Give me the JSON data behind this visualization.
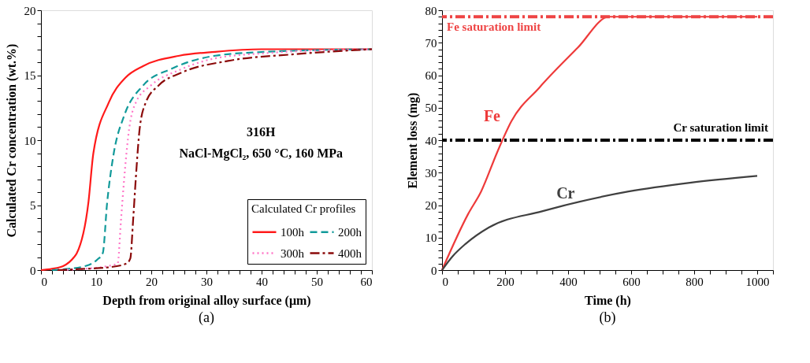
{
  "chart_data": [
    {
      "type": "line",
      "title": "(a)",
      "xlabel": "Depth from original alloy surface (μm)",
      "ylabel": "Calculated Cr concentration (wt.%)",
      "legend_title": "Calculated Cr profiles",
      "legend": "bottom right",
      "grid": false,
      "marker": "none",
      "xlim": [
        0,
        60
      ],
      "ylim": [
        0,
        20
      ],
      "xticks": [
        0,
        {
          "value": 2,
          "label": null
        },
        {
          "value": 4,
          "label": null
        },
        {
          "value": 6,
          "label": null
        },
        {
          "value": 8,
          "label": null
        },
        10,
        {
          "value": 12,
          "label": null
        },
        {
          "value": 14,
          "label": null
        },
        {
          "value": 16,
          "label": null
        },
        {
          "value": 18,
          "label": null
        },
        20,
        {
          "value": 22,
          "label": null
        },
        {
          "value": 24,
          "label": null
        },
        {
          "value": 26,
          "label": null
        },
        {
          "value": 28,
          "label": null
        },
        30,
        {
          "value": 32,
          "label": null
        },
        {
          "value": 34,
          "label": null
        },
        {
          "value": 36,
          "label": null
        },
        {
          "value": 38,
          "label": null
        },
        40,
        {
          "value": 42,
          "label": null
        },
        {
          "value": 44,
          "label": null
        },
        {
          "value": 46,
          "label": null
        },
        {
          "value": 48,
          "label": null
        },
        50,
        {
          "value": 52,
          "label": null
        },
        {
          "value": 54,
          "label": null
        },
        {
          "value": 56,
          "label": null
        },
        {
          "value": 58,
          "label": null
        },
        60
      ],
      "yticks": [
        0,
        {
          "value": 1,
          "label": null
        },
        {
          "value": 2,
          "label": null
        },
        {
          "value": 3,
          "label": null
        },
        {
          "value": 4,
          "label": null
        },
        5,
        {
          "value": 6,
          "label": null
        },
        {
          "value": 7,
          "label": null
        },
        {
          "value": 8,
          "label": null
        },
        {
          "value": 9,
          "label": null
        },
        10,
        {
          "value": 11,
          "label": null
        },
        {
          "value": 12,
          "label": null
        },
        {
          "value": 13,
          "label": null
        },
        {
          "value": 14,
          "label": null
        },
        15,
        {
          "value": 16,
          "label": null
        },
        {
          "value": 17,
          "label": null
        },
        {
          "value": 18,
          "label": null
        },
        {
          "value": 19,
          "label": null
        },
        20
      ],
      "annotations": [
        "316H",
        "NaCl-MgCl₂, 650 °C, 160 MPa"
      ],
      "series": [
        {
          "name": "100h",
          "color": "#ff1a1a",
          "line_style": "solid",
          "x": [
            0,
            2,
            4,
            6,
            6.5,
            8.6,
            9.5,
            12.3,
            15.3,
            18.5,
            25.1,
            31.6,
            40,
            60
          ],
          "values": [
            0,
            0.1,
            0.3,
            1,
            1.3,
            5.2,
            9,
            12.9,
            14.8,
            15.7,
            16.5,
            16.8,
            17,
            17
          ]
        },
        {
          "name": "200h",
          "color": "#129a9a",
          "line_style": "dashed",
          "x": [
            2,
            5,
            8,
            10.2,
            11.2,
            12,
            13.2,
            15.1,
            18.5,
            23.7,
            31.6,
            40.9,
            60
          ],
          "values": [
            0,
            0.1,
            0.3,
            0.8,
            1.3,
            5.2,
            9,
            11.9,
            14.2,
            15.5,
            16.5,
            16.8,
            17
          ]
        },
        {
          "name": "300h",
          "color": "#ff77c8",
          "line_style": "dotted",
          "x": [
            3,
            8,
            12,
            13.9,
            14.5,
            15.1,
            16,
            17.2,
            19.9,
            25.1,
            31.6,
            40.9,
            60
          ],
          "values": [
            0,
            0.1,
            0.3,
            0.5,
            3.8,
            7.1,
            10.9,
            12.9,
            14.2,
            15.4,
            16.3,
            16.7,
            17
          ]
        },
        {
          "name": "400h",
          "color": "#8b0a0a",
          "line_style": "dashdot",
          "x": [
            3,
            8,
            12,
            15.5,
            16.2,
            16.7,
            17.2,
            17.9,
            19,
            21.3,
            25.5,
            33.9,
            45.5,
            60
          ],
          "values": [
            0,
            0.1,
            0.2,
            0.5,
            0.9,
            3.8,
            7.1,
            10.9,
            12.9,
            14.2,
            15.2,
            16.1,
            16.6,
            17
          ]
        }
      ]
    },
    {
      "type": "line",
      "title": "(b)",
      "xlabel": "Time (h)",
      "ylabel": "Element loss (mg)",
      "legend": false,
      "grid": false,
      "marker": "none",
      "xlim": [
        0,
        1050
      ],
      "ylim": [
        0,
        80
      ],
      "xticks": [
        0,
        {
          "value": 50,
          "label": null
        },
        {
          "value": 100,
          "label": null
        },
        {
          "value": 150,
          "label": null
        },
        200,
        {
          "value": 250,
          "label": null
        },
        {
          "value": 300,
          "label": null
        },
        {
          "value": 350,
          "label": null
        },
        400,
        {
          "value": 450,
          "label": null
        },
        {
          "value": 500,
          "label": null
        },
        {
          "value": 550,
          "label": null
        },
        600,
        {
          "value": 650,
          "label": null
        },
        {
          "value": 700,
          "label": null
        },
        {
          "value": 750,
          "label": null
        },
        800,
        {
          "value": 850,
          "label": null
        },
        {
          "value": 900,
          "label": null
        },
        {
          "value": 950,
          "label": null
        },
        1000,
        {
          "value": 1050,
          "label": null
        }
      ],
      "yticks": [
        0,
        {
          "value": 2,
          "label": null
        },
        {
          "value": 4,
          "label": null
        },
        {
          "value": 6,
          "label": null
        },
        {
          "value": 8,
          "label": null
        },
        10,
        {
          "value": 12,
          "label": null
        },
        {
          "value": 14,
          "label": null
        },
        {
          "value": 16,
          "label": null
        },
        {
          "value": 18,
          "label": null
        },
        20,
        {
          "value": 22,
          "label": null
        },
        {
          "value": 24,
          "label": null
        },
        {
          "value": 26,
          "label": null
        },
        {
          "value": 28,
          "label": null
        },
        30,
        {
          "value": 32,
          "label": null
        },
        {
          "value": 34,
          "label": null
        },
        {
          "value": 36,
          "label": null
        },
        {
          "value": 38,
          "label": null
        },
        40,
        {
          "value": 42,
          "label": null
        },
        {
          "value": 44,
          "label": null
        },
        {
          "value": 46,
          "label": null
        },
        {
          "value": 48,
          "label": null
        },
        50,
        {
          "value": 52,
          "label": null
        },
        {
          "value": 54,
          "label": null
        },
        {
          "value": 56,
          "label": null
        },
        {
          "value": 58,
          "label": null
        },
        60,
        {
          "value": 62,
          "label": null
        },
        {
          "value": 64,
          "label": null
        },
        {
          "value": 66,
          "label": null
        },
        {
          "value": 68,
          "label": null
        },
        70,
        {
          "value": 72,
          "label": null
        },
        {
          "value": 74,
          "label": null
        },
        {
          "value": 76,
          "label": null
        },
        {
          "value": 78,
          "label": null
        },
        80
      ],
      "ref_lines": [
        {
          "axis": "y",
          "value": 78,
          "label": "Fe saturation limit",
          "color": "#ee4444",
          "line_style": "dashdot"
        },
        {
          "axis": "y",
          "value": 40,
          "label": "Cr saturation limit",
          "color": "#000000",
          "line_style": "dashdot"
        }
      ],
      "series": [
        {
          "name": "Fe",
          "color": "#ee3a3a",
          "line_style": "solid",
          "x": [
            0,
            83,
            124,
            176,
            220,
            309,
            430,
            530,
            1000
          ],
          "values": [
            0,
            17.3,
            24.2,
            36.5,
            45.8,
            56.2,
            68.4,
            78,
            78
          ]
        },
        {
          "name": "Cr",
          "color": "#404040",
          "line_style": "solid",
          "x": [
            0,
            33,
            75,
            148,
            317,
            592,
            786,
            1000
          ],
          "values": [
            0,
            4.2,
            8.1,
            13.1,
            18.1,
            24.2,
            26.9,
            29
          ]
        }
      ]
    }
  ]
}
